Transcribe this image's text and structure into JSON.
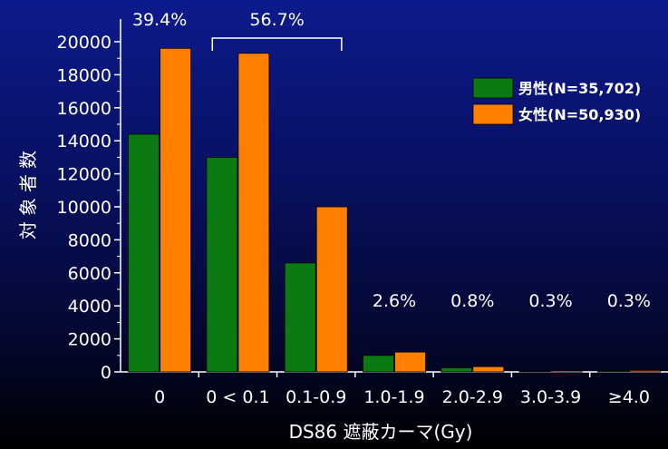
{
  "chart_data": {
    "type": "bar",
    "categories": [
      "0",
      "0 < 0.1",
      "0.1-0.9",
      "1.0-1.9",
      "2.0-2.9",
      "3.0-3.9",
      "≥4.0"
    ],
    "series": [
      {
        "name": "男性(N=35,702)",
        "color": "#0b7a12",
        "values": [
          14400,
          13000,
          6600,
          1000,
          250,
          40,
          60
        ]
      },
      {
        "name": "女性(N=50,930)",
        "color": "#ff8000",
        "values": [
          19600,
          19300,
          10000,
          1200,
          320,
          80,
          90
        ]
      }
    ],
    "xlabel": "DS86 遮蔽カーマ(Gy)",
    "ylabel": "対象者数",
    "ylim": [
      0,
      20000
    ],
    "yticks": [
      "0",
      "2000",
      "4000",
      "6000",
      "8000",
      "10000",
      "12000",
      "14000",
      "16000",
      "18000",
      "20000"
    ],
    "annotations": [
      {
        "text": "39.4%",
        "categories": [
          "0"
        ]
      },
      {
        "text": "56.7%",
        "categories": [
          "0 < 0.1",
          "0.1-0.9"
        ],
        "bracket": true
      },
      {
        "text": "2.6%",
        "categories": [
          "1.0-1.9"
        ]
      },
      {
        "text": "0.8%",
        "categories": [
          "2.0-2.9"
        ]
      },
      {
        "text": "0.3%",
        "categories": [
          "3.0-3.9"
        ]
      },
      {
        "text": "0.3%",
        "categories": [
          "≥4.0"
        ]
      }
    ],
    "legend_position": "top-right"
  }
}
